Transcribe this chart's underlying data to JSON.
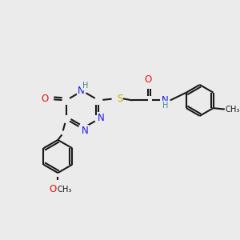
{
  "bg_color": "#ebebeb",
  "colors": {
    "C": "#1a1a1a",
    "N": "#1a1aee",
    "O": "#ee1111",
    "S": "#bbaa00",
    "H": "#3a8a8a",
    "bond": "#1a1a1a"
  },
  "lw": 1.5,
  "sep": 0.1,
  "fs": 8.5,
  "fss": 7.2
}
